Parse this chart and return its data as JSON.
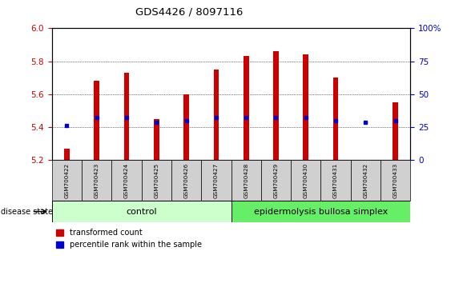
{
  "title": "GDS4426 / 8097116",
  "samples": [
    "GSM700422",
    "GSM700423",
    "GSM700424",
    "GSM700425",
    "GSM700426",
    "GSM700427",
    "GSM700428",
    "GSM700429",
    "GSM700430",
    "GSM700431",
    "GSM700432",
    "GSM700433"
  ],
  "transformed_count": [
    5.27,
    5.68,
    5.73,
    5.45,
    5.6,
    5.75,
    5.83,
    5.86,
    5.84,
    5.7,
    5.2,
    5.55
  ],
  "percentile_rank": [
    5.41,
    5.46,
    5.46,
    5.43,
    5.44,
    5.46,
    5.46,
    5.46,
    5.46,
    5.44,
    5.43,
    5.44
  ],
  "ylim_left": [
    5.2,
    6.0
  ],
  "ylim_right": [
    0,
    100
  ],
  "yticks_left": [
    5.2,
    5.4,
    5.6,
    5.8,
    6.0
  ],
  "yticks_right": [
    0,
    25,
    50,
    75,
    100
  ],
  "control_count": 6,
  "disease_count": 6,
  "control_label": "control",
  "disease_label": "epidermolysis bullosa simplex",
  "bar_color": "#CC0000",
  "percentile_color": "#0000CC",
  "control_bg": "#ccffcc",
  "disease_bg": "#66ee66",
  "sample_bg": "#d0d0d0",
  "ylabel_left_color": "#CC0000",
  "ylabel_right_color": "#0000CC",
  "legend_red": "transformed count",
  "legend_blue": "percentile rank within the sample",
  "bar_width": 0.18
}
